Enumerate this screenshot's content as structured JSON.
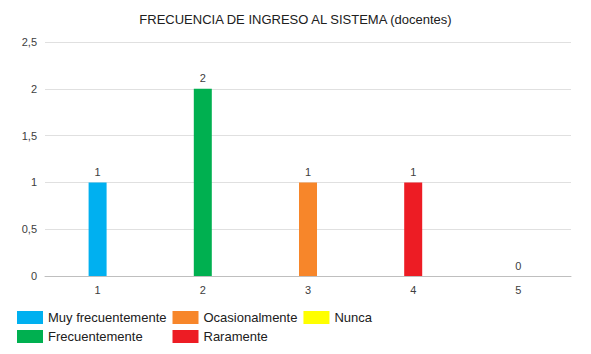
{
  "chart_data": {
    "type": "bar",
    "title": "FRECUENCIA DE INGRESO AL SISTEMA (docentes)",
    "categories": [
      "1",
      "2",
      "3",
      "4",
      "5"
    ],
    "series": [
      {
        "name": "Muy frecuentemente",
        "color": "#00b0f0",
        "values": [
          1,
          null,
          null,
          null,
          null
        ]
      },
      {
        "name": "Frecuentemente",
        "color": "#00b050",
        "values": [
          null,
          2,
          null,
          null,
          null
        ]
      },
      {
        "name": "Ocasionalmente",
        "color": "#f7862a",
        "values": [
          null,
          null,
          1,
          null,
          null
        ]
      },
      {
        "name": "Raramente",
        "color": "#ed1c24",
        "values": [
          null,
          null,
          null,
          1,
          null
        ]
      },
      {
        "name": "Nunca",
        "color": "#ffff00",
        "values": [
          null,
          null,
          null,
          null,
          0
        ]
      }
    ],
    "ylim": [
      0,
      2.5
    ],
    "yticks": [
      0,
      {
        "value": 0.5,
        "label": "0,5"
      },
      1,
      {
        "value": 1.5,
        "label": "1,5"
      },
      2,
      {
        "value": 2.5,
        "label": "2,5"
      }
    ],
    "grid": true,
    "legend": "bottom",
    "data_labels": true
  }
}
